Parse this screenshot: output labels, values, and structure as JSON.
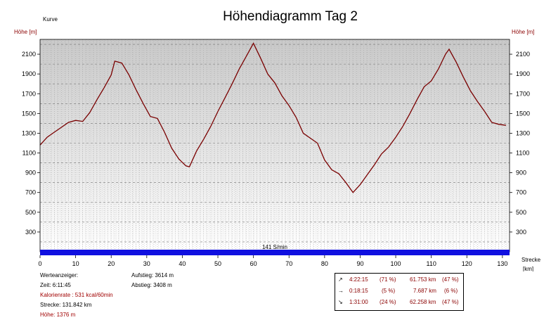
{
  "chart_data": {
    "type": "area",
    "title": "Höhendiagramm Tag 2",
    "legend_label": "Kurve",
    "ylabel_left": "Höhe [m]",
    "ylabel_right": "Höhe [m]",
    "xlabel": "Strecke",
    "xlabel_unit": "[km]",
    "xlim": [
      0,
      132
    ],
    "ylim": [
      100,
      2250
    ],
    "x_ticks": [
      0,
      10,
      20,
      30,
      40,
      50,
      60,
      70,
      80,
      90,
      100,
      110,
      120,
      130
    ],
    "y_ticks": [
      300,
      500,
      700,
      900,
      1100,
      1300,
      1500,
      1700,
      1900,
      2100
    ],
    "grid": true,
    "line_color": "#7a0000",
    "label_color": "#8b0000",
    "band_color": "#1010e0",
    "band_label": "141 S/min",
    "series": [
      {
        "x": [
          0,
          2,
          4,
          6,
          8,
          10,
          12,
          14,
          16,
          18,
          20,
          21,
          23,
          25,
          27,
          29,
          31,
          33,
          35,
          37,
          39,
          41,
          42,
          44,
          46,
          48,
          50,
          52,
          54,
          56,
          58,
          60,
          62,
          64,
          66,
          68,
          70,
          72,
          74,
          76,
          78,
          80,
          82,
          84,
          86,
          88,
          90,
          92,
          94,
          96,
          98,
          100,
          102,
          104,
          106,
          108,
          110,
          112,
          114,
          115,
          117,
          119,
          121,
          123,
          125,
          127,
          129,
          131
        ],
        "y": [
          1180,
          1260,
          1310,
          1360,
          1410,
          1430,
          1420,
          1510,
          1640,
          1760,
          1890,
          2030,
          2010,
          1890,
          1740,
          1600,
          1470,
          1450,
          1310,
          1150,
          1040,
          970,
          960,
          1120,
          1240,
          1370,
          1520,
          1660,
          1800,
          1950,
          2080,
          2210,
          2060,
          1900,
          1810,
          1680,
          1580,
          1460,
          1300,
          1250,
          1200,
          1030,
          930,
          890,
          800,
          700,
          780,
          880,
          980,
          1090,
          1160,
          1260,
          1370,
          1500,
          1640,
          1770,
          1830,
          1950,
          2100,
          2150,
          2020,
          1870,
          1730,
          1620,
          1520,
          1410,
          1390,
          1380
        ]
      }
    ]
  },
  "info": {
    "heading": "Werteanzeiger:",
    "zeit": "Zeit: 6:11:45",
    "kalorien": "Kalorienrate : 531 kcal/60min",
    "strecke": "Strecke: 131.842 km",
    "hoehe": "Höhe: 1376 m",
    "aufstieg": "Aufstieg: 3614 m",
    "abstieg": "Abstieg: 3408 m"
  },
  "segments": [
    {
      "icon": "arrow-up-right-icon",
      "glyph": "↗",
      "time": "4:22:15",
      "time_pct": "(71 %)",
      "distance": "61.753 km",
      "dist_pct": "(47 %)"
    },
    {
      "icon": "arrow-right-icon",
      "glyph": "→",
      "time": "0:18:15",
      "time_pct": "(5 %)",
      "distance": "7.687 km",
      "dist_pct": "(6 %)"
    },
    {
      "icon": "arrow-down-right-icon",
      "glyph": "↘",
      "time": "1:31:00",
      "time_pct": "(24 %)",
      "distance": "62.258 km",
      "dist_pct": "(47 %)"
    }
  ]
}
